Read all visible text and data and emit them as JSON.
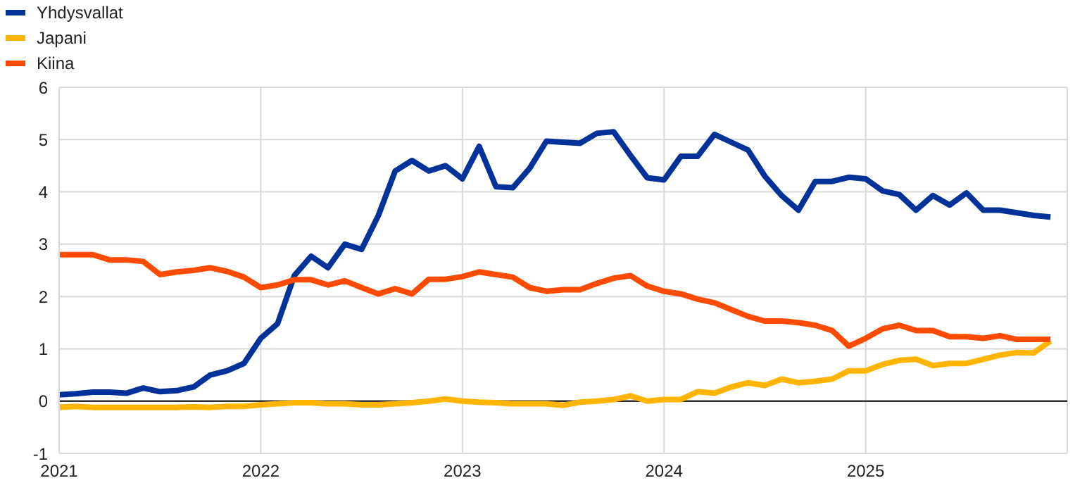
{
  "chart_data": {
    "type": "line",
    "x": [
      "2021-01",
      "2021-02",
      "2021-03",
      "2021-04",
      "2021-05",
      "2021-06",
      "2021-07",
      "2021-08",
      "2021-09",
      "2021-10",
      "2021-11",
      "2021-12",
      "2022-01",
      "2022-02",
      "2022-03",
      "2022-04",
      "2022-05",
      "2022-06",
      "2022-07",
      "2022-08",
      "2022-09",
      "2022-10",
      "2022-11",
      "2022-12",
      "2023-01",
      "2023-02",
      "2023-03",
      "2023-04",
      "2023-05",
      "2023-06",
      "2023-07",
      "2023-08",
      "2023-09",
      "2023-10",
      "2023-11",
      "2023-12",
      "2024-01",
      "2024-02",
      "2024-03",
      "2024-04",
      "2024-05",
      "2024-06",
      "2024-07",
      "2024-08",
      "2024-09",
      "2024-10",
      "2024-11",
      "2024-12",
      "2025-01",
      "2025-02",
      "2025-03",
      "2025-04",
      "2025-05",
      "2025-06",
      "2025-07",
      "2025-08",
      "2025-09",
      "2025-10",
      "2025-11",
      "2025-12"
    ],
    "series": [
      {
        "name": "Yhdysvallat",
        "color": "#003299",
        "values": [
          0.12,
          0.14,
          0.17,
          0.17,
          0.15,
          0.25,
          0.18,
          0.2,
          0.27,
          0.5,
          0.58,
          0.72,
          1.2,
          1.48,
          2.4,
          2.77,
          2.55,
          3.0,
          2.9,
          3.55,
          4.4,
          4.6,
          4.4,
          4.5,
          4.25,
          4.87,
          4.1,
          4.08,
          4.45,
          4.97,
          4.95,
          4.93,
          5.12,
          5.15,
          4.7,
          4.27,
          4.23,
          4.68,
          4.68,
          5.1,
          4.95,
          4.8,
          4.3,
          3.93,
          3.65,
          4.2,
          4.2,
          4.28,
          4.25,
          4.02,
          3.95,
          3.65,
          3.93,
          3.75,
          3.98,
          3.65,
          3.65,
          3.6,
          3.55,
          3.52
        ]
      },
      {
        "name": "Japani",
        "color": "#ffb400",
        "values": [
          -0.12,
          -0.1,
          -0.12,
          -0.12,
          -0.12,
          -0.12,
          -0.12,
          -0.12,
          -0.11,
          -0.12,
          -0.1,
          -0.1,
          -0.07,
          -0.05,
          -0.03,
          -0.03,
          -0.05,
          -0.05,
          -0.07,
          -0.07,
          -0.05,
          -0.03,
          0,
          0.04,
          0,
          -0.02,
          -0.03,
          -0.05,
          -0.05,
          -0.05,
          -0.08,
          -0.02,
          0,
          0.03,
          0.1,
          0,
          0.03,
          0.03,
          0.18,
          0.15,
          0.27,
          0.35,
          0.3,
          0.42,
          0.35,
          0.38,
          0.42,
          0.58,
          0.58,
          0.7,
          0.78,
          0.8,
          0.68,
          0.72,
          0.72,
          0.8,
          0.88,
          0.93,
          0.92,
          1.15
        ]
      },
      {
        "name": "Kiina",
        "color": "#ff4b00",
        "values": [
          2.8,
          2.8,
          2.8,
          2.7,
          2.7,
          2.67,
          2.42,
          2.47,
          2.5,
          2.55,
          2.48,
          2.37,
          2.17,
          2.22,
          2.32,
          2.32,
          2.22,
          2.3,
          2.17,
          2.05,
          2.15,
          2.05,
          2.33,
          2.33,
          2.38,
          2.47,
          2.42,
          2.37,
          2.17,
          2.1,
          2.13,
          2.13,
          2.25,
          2.35,
          2.4,
          2.2,
          2.1,
          2.05,
          1.95,
          1.88,
          1.75,
          1.62,
          1.53,
          1.53,
          1.5,
          1.45,
          1.35,
          1.05,
          1.2,
          1.38,
          1.45,
          1.35,
          1.35,
          1.23,
          1.23,
          1.2,
          1.25,
          1.18,
          1.18,
          1.18
        ]
      }
    ],
    "xlim": [
      "2021-01",
      "2026-01"
    ],
    "xticks": [
      "2021",
      "2022",
      "2023",
      "2024",
      "2025"
    ],
    "ylim": [
      -1,
      6
    ],
    "yticks": [
      -1,
      0,
      1,
      2,
      3,
      4,
      5,
      6
    ],
    "ref_lines": [
      {
        "axis": "y",
        "value": 0,
        "color": "#333333"
      }
    ],
    "grid": true,
    "legend": "top left",
    "marker": "none",
    "line_style": "solid"
  }
}
